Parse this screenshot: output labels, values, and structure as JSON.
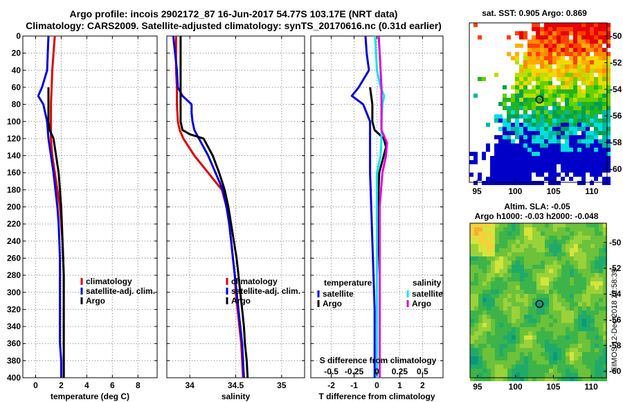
{
  "header": {
    "title_line1": "Argo profile: incois 2902172_87 16-Jun-2017 54.77S 103.17E (NRT data)",
    "title_line2": "Climatology: CARS2009. Satellite-adjusted climatology: synTS_20170616.nc (0.31d earlier)"
  },
  "colors": {
    "climatology": "#e00000",
    "satellite": "#0000e0",
    "argo": "#000000",
    "sal_satellite": "#00e8e8",
    "sal_argo": "#e000e0",
    "grid": "#777777"
  },
  "watermark": "©IMOS 12-Dec-2018 22:58:39",
  "chart_data": [
    {
      "type": "line",
      "id": "temperature",
      "xlabel": "temperature (deg C)",
      "ylabel": "",
      "xlim": [
        -1,
        9.5
      ],
      "ylim": [
        400,
        0
      ],
      "xticks": [
        0,
        2,
        4,
        6,
        8
      ],
      "yticks": [
        0,
        20,
        40,
        60,
        80,
        100,
        120,
        140,
        160,
        180,
        200,
        220,
        240,
        260,
        280,
        300,
        320,
        340,
        360,
        380,
        400
      ],
      "grid": true,
      "legend": [
        "climatology",
        "satellite-adj. clim.",
        "Argo"
      ],
      "legend_position": "lower-right",
      "series": [
        {
          "name": "climatology",
          "color": "#e00000",
          "y": [
            0,
            20,
            40,
            60,
            80,
            100,
            120,
            140,
            160,
            180,
            200,
            220,
            240,
            260,
            280,
            300,
            320,
            340,
            360,
            380,
            400
          ],
          "x": [
            1.5,
            1.4,
            1.3,
            1.25,
            1.2,
            1.2,
            1.2,
            1.3,
            1.5,
            1.7,
            1.9,
            2.0,
            2.1,
            2.15,
            2.2,
            2.2,
            2.2,
            2.2,
            2.2,
            2.2,
            2.2
          ]
        },
        {
          "name": "satellite-adj. clim.",
          "color": "#0000e0",
          "y": [
            0,
            20,
            40,
            60,
            70,
            80,
            100,
            120,
            140,
            160,
            180,
            200,
            220,
            240,
            260,
            280,
            300,
            320,
            340,
            360,
            380,
            400
          ],
          "x": [
            1.0,
            0.95,
            0.9,
            0.5,
            0.2,
            0.6,
            0.9,
            1.0,
            1.2,
            1.4,
            1.55,
            1.7,
            1.8,
            1.85,
            1.9,
            1.9,
            1.9,
            1.9,
            1.9,
            1.9,
            2.0,
            2.0
          ]
        },
        {
          "name": "Argo",
          "color": "#000000",
          "y": [
            60,
            80,
            100,
            110,
            120,
            140,
            160,
            180,
            200,
            220,
            240,
            260,
            280,
            300,
            320,
            340,
            360,
            380,
            400
          ],
          "x": [
            1.0,
            1.0,
            1.0,
            1.1,
            1.4,
            1.6,
            1.8,
            1.9,
            2.0,
            2.05,
            2.1,
            2.15,
            2.2,
            2.2,
            2.2,
            2.2,
            2.2,
            2.2,
            2.2
          ]
        }
      ]
    },
    {
      "type": "line",
      "id": "salinity",
      "xlabel": "salinity",
      "ylabel": "",
      "xlim": [
        33.75,
        35.25
      ],
      "ylim": [
        400,
        0
      ],
      "xticks": [
        34,
        34.5,
        35
      ],
      "grid": true,
      "legend": [
        "climatology",
        "satellite-adj. clim.",
        "Argo"
      ],
      "legend_position": "lower-right",
      "series": [
        {
          "name": "climatology",
          "color": "#e00000",
          "y": [
            0,
            20,
            40,
            60,
            80,
            100,
            110,
            120,
            140,
            160,
            180,
            200,
            220,
            240,
            260,
            280,
            300,
            320,
            340,
            360,
            380,
            400
          ],
          "x": [
            33.85,
            33.85,
            33.85,
            33.86,
            33.86,
            33.87,
            33.89,
            33.93,
            34.05,
            34.2,
            34.35,
            34.4,
            34.43,
            34.45,
            34.47,
            34.49,
            34.5,
            34.52,
            34.54,
            34.56,
            34.57,
            34.58
          ]
        },
        {
          "name": "satellite-adj. clim.",
          "color": "#0000e0",
          "y": [
            0,
            20,
            40,
            60,
            70,
            80,
            90,
            100,
            110,
            120,
            140,
            160,
            180,
            200,
            220,
            240,
            260,
            280,
            300,
            320,
            340,
            360,
            380,
            400
          ],
          "x": [
            33.82,
            33.84,
            33.86,
            33.87,
            33.92,
            34.02,
            34.02,
            34.03,
            34.05,
            34.1,
            34.2,
            34.28,
            34.36,
            34.4,
            34.43,
            34.45,
            34.47,
            34.49,
            34.51,
            34.53,
            34.55,
            34.57,
            34.58,
            34.59
          ]
        },
        {
          "name": "Argo",
          "color": "#000000",
          "y": [
            0,
            20,
            40,
            60,
            80,
            100,
            110,
            115,
            120,
            140,
            160,
            180,
            200,
            220,
            240,
            260,
            280,
            300,
            320,
            340,
            360,
            380,
            400
          ],
          "x": [
            33.9,
            33.9,
            33.9,
            33.9,
            33.9,
            33.9,
            33.92,
            34.0,
            34.15,
            34.25,
            34.32,
            34.38,
            34.42,
            34.45,
            34.48,
            34.51,
            34.53,
            34.55,
            34.57,
            34.59,
            34.6,
            34.62,
            34.63
          ]
        }
      ]
    },
    {
      "type": "line",
      "id": "difference",
      "xlabel": "T difference from climatology",
      "top_axis_label": "S difference from climatology",
      "ylabel": "",
      "xlim": [
        -2.9,
        2.9
      ],
      "ylim": [
        400,
        0
      ],
      "xticks": [
        -2,
        -1,
        0,
        1,
        2
      ],
      "s_xlim": [
        -0.725,
        0.725
      ],
      "s_xticks": [
        -0.5,
        -0.25,
        0,
        0.25,
        0.5
      ],
      "s_xtick_labels": [
        "-0.5",
        "-0.25",
        "0",
        "0.25",
        "0.5"
      ],
      "grid": true,
      "legend_temperature_title": "temperature",
      "legend_salinity_title": "salinity",
      "legend": [
        "satellite",
        "Argo",
        "satellite",
        "Argo"
      ],
      "legend_position": "lower",
      "series": [
        {
          "name": "T satellite",
          "color": "#0000e0",
          "y": [
            0,
            20,
            40,
            60,
            70,
            80,
            100,
            120,
            140,
            160,
            200,
            240,
            280,
            320,
            360,
            400
          ],
          "x": [
            -0.5,
            -0.45,
            -0.35,
            -0.8,
            -1.1,
            -0.6,
            -0.3,
            -0.3,
            -0.3,
            -0.3,
            -0.25,
            -0.2,
            -0.15,
            -0.1,
            -0.1,
            -0.1
          ]
        },
        {
          "name": "T Argo",
          "color": "#000000",
          "y": [
            60,
            80,
            100,
            110,
            120,
            130,
            140,
            160,
            200,
            240,
            280,
            320,
            360,
            400
          ],
          "x": [
            -0.3,
            -0.2,
            -0.2,
            -0.1,
            0.3,
            0.4,
            0.3,
            0.1,
            0.05,
            0.05,
            0.0,
            0.0,
            0.0,
            0.0
          ]
        },
        {
          "name": "S satellite",
          "color": "#00e8e8",
          "s_x": [
            -0.02,
            -0.01,
            0.0,
            0.04,
            0.08,
            0.06,
            0.05,
            0.05,
            0.05,
            0.04,
            0.0,
            0.0,
            0.0,
            0.0,
            0.0,
            0.0
          ],
          "y": [
            0,
            20,
            40,
            60,
            70,
            80,
            100,
            110,
            120,
            140,
            160,
            200,
            240,
            280,
            320,
            400
          ]
        },
        {
          "name": "S Argo",
          "color": "#e000e0",
          "s_x": [
            0.02,
            0.03,
            0.04,
            0.05,
            0.05,
            0.05,
            0.05,
            0.07,
            0.11,
            0.1,
            0.06,
            0.03,
            0.03,
            0.03,
            0.03,
            0.03
          ],
          "y": [
            0,
            20,
            40,
            60,
            80,
            100,
            110,
            115,
            125,
            140,
            160,
            200,
            240,
            280,
            320,
            400
          ]
        }
      ]
    },
    {
      "type": "heatmap",
      "id": "sst_map",
      "title": "sat. SST: 0.905 Argo: 0.869",
      "xlim": [
        94,
        112
      ],
      "ylim": [
        -61,
        -49
      ],
      "xticks": [
        95,
        100,
        105,
        110
      ],
      "yticks": [
        -50,
        -52,
        -54,
        -56,
        -58,
        -60
      ],
      "marker": {
        "lon": 103.17,
        "lat": -54.77
      }
    },
    {
      "type": "heatmap",
      "id": "sla_map",
      "title": "Altim. SLA: -0.05",
      "subtitle": "Argo h1000: -0.03 h2000: -0.048",
      "xlim": [
        94,
        112
      ],
      "ylim": [
        -60.5,
        -48.5
      ],
      "xticks": [
        95,
        100,
        105,
        110
      ],
      "yticks": [
        -50,
        -52,
        -54,
        -56,
        -58,
        -60
      ],
      "marker": {
        "lon": 103.17,
        "lat": -54.77
      }
    }
  ]
}
